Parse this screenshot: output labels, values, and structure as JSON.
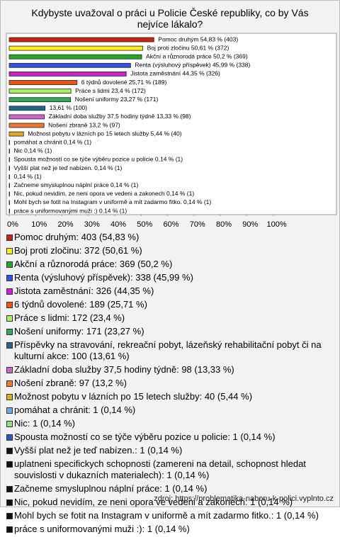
{
  "chart_data": {
    "type": "hbar",
    "title": [
      "Kdybyste uvažoval o práci u Policie České republiky, co by Vás",
      "nejvíce lákalo?"
    ],
    "categories": [
      null,
      null,
      null,
      null,
      null,
      null,
      null,
      null,
      null,
      null,
      null,
      null,
      null,
      null,
      null,
      null,
      null,
      null,
      null,
      null,
      null
    ],
    "values": [
      54.83,
      50.61,
      50.2,
      45.99,
      44.35,
      25.71,
      23.4,
      23.27,
      13.61,
      13.33,
      13.2,
      5.44,
      0.14,
      0.14,
      0.14,
      0.14,
      0.14,
      0.14,
      0.14,
      0.14,
      0.14
    ],
    "value_labels": [
      "Pomoc druhým 54,83 % (403)",
      "Boj proti zločinu 50,61 % (372)",
      "Akční a různorodá práce 50,2 % (369)",
      "Renta (výsluhový příspěvek) 45,99 % (338)",
      "Jistota zaměstnání 44,35 % (326)",
      "6 týdnů dovolené 25,71 % (189)",
      "Práce s lidmi 23,4 % (172)",
      "Nošení uniformy 23,27 % (171)",
      "13,61 % (100)",
      "Základní doba služby 37,5 hodiny týdně 13,33 % (98)",
      "Nošení zbraně 13,2 % (97)",
      "Možnost pobytu v lázních po 15 letech služby 5,44 % (40)",
      "pomáhat a chránit 0,14 % (1)",
      "Nic 0,14 % (1)",
      "Spousta možností co se týče výběru pozice u policie 0,14 % (1)",
      "Vyšší plat než je teď nabízen. 0,14 % (1)",
      "0,14 % (1)",
      "Začneme smysluplnou náplní práce 0,14 % (1)",
      "Nic, pokud nevidím, ze neni opora ve vedeni a zakonech 0,14 % (1)",
      "Mohl bych se fotit na Instagram v uniformě a mít zadarmo fitko. 0,14 % (1)",
      "práce s uniformovanými muži :) 0,14 % (1)"
    ],
    "colors": [
      "#cc2211",
      "#ffee11",
      "#22aa22",
      "#3355dd",
      "#cc22cc",
      "#ee5511",
      "#aaee66",
      "#33aa55",
      "#226688",
      "#cc66cc",
      "#ee7733",
      "#ddaa22",
      "#66aaee",
      "#99dd77",
      "#3355bb",
      "#111111",
      "#111111",
      "#111111",
      "#111111",
      "#111111",
      "#111111"
    ],
    "legend": [
      "Pomoc druhým: 403 (54,83 %)",
      "Boj proti zločinu: 372 (50,61 %)",
      "Akční a různorodá práce: 369 (50,2 %)",
      "Renta (výsluhový příspěvek): 338 (45,99 %)",
      "Jistota zaměstnání: 326 (44,35 %)",
      "6 týdnů dovolené: 189 (25,71 %)",
      "Práce s lidmi: 172 (23,4 %)",
      "Nošení uniformy: 171 (23,27 %)",
      "Příspěvky na stravování, rekreační pobyt, lázeňský rehabilitační pobyt či na kulturní akce: 100 (13,61 %)",
      "Základní doba služby 37,5 hodiny týdně: 98 (13,33 %)",
      "Nošení zbraně: 97 (13,2 %)",
      "Možnost pobytu v lázních po 15 letech služby: 40 (5,44 %)",
      "pomáhat a chránit: 1 (0,14 %)",
      "Nic: 1 (0,14 %)",
      "Spousta možností co se týče výběru pozice u policie: 1 (0,14 %)",
      "Vyšší plat než je teď nabízen.: 1 (0,14 %)",
      "uplatneni specifickych schopnosti (zamereni na detail, schopnost hledat souvislosti v dukazních materialech): 1 (0,14 %)",
      "Začneme smysluplnou náplní práce: 1 (0,14 %)",
      "Nic, pokud nevidím, ze neni opora ve vedeni a zakonech: 1 (0,14 %)",
      "Mohl bych se fotit na Instagram v uniformě a mít zadarmo fitko.: 1 (0,14 %)",
      "práce s uniformovanými muži :): 1 (0,14 %)"
    ],
    "xlim": [
      0,
      124
    ],
    "xticks": [
      {
        "value": 0,
        "label": "0%"
      },
      {
        "value": 10,
        "label": "10%"
      },
      {
        "value": 20,
        "label": "20%"
      },
      {
        "value": 30,
        "label": "30%"
      },
      {
        "value": 40,
        "label": "40%"
      },
      {
        "value": 50,
        "label": "50%"
      },
      {
        "value": 60,
        "label": "60%"
      },
      {
        "value": 70,
        "label": "70%"
      },
      {
        "value": 80,
        "label": "80%"
      },
      {
        "value": 90,
        "label": "90%"
      },
      {
        "value": 100,
        "label": "100%"
      }
    ],
    "source": "zdroj: https://problematika-naboru-k-polici.vyplnto.cz"
  }
}
